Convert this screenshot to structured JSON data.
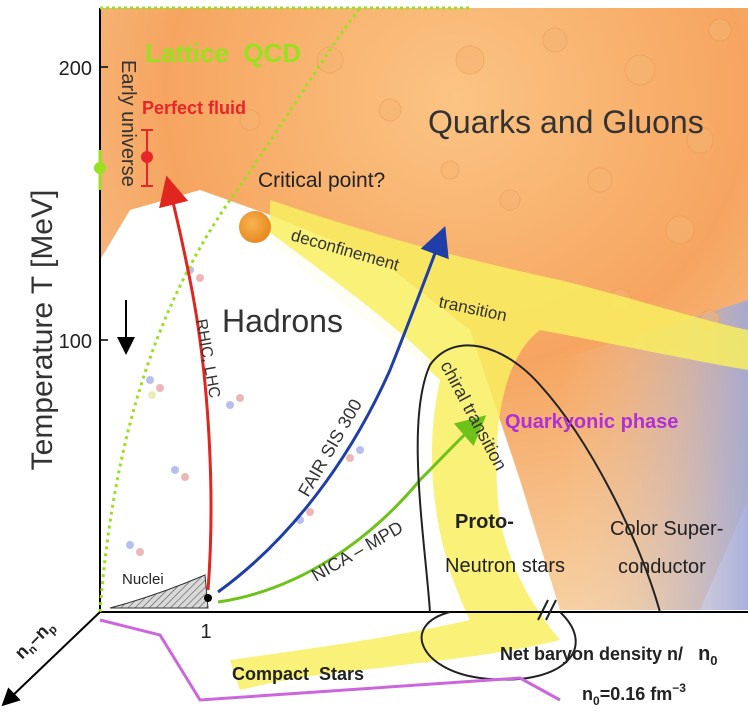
{
  "axes": {
    "y_label": "Temperature T [MeV]",
    "y_ticks": [
      "200",
      "100"
    ],
    "x_tick": "1",
    "x_label": "Net baryon density n/",
    "x_label_sub": "n",
    "x_label_sub2": "0",
    "norm_def_a": "n",
    "norm_def_b": "0",
    "norm_def_c": "=0.16 fm",
    "norm_def_d": "−3",
    "diag_axis_a": "n",
    "diag_axis_b": "n",
    "diag_axis_c": "–n",
    "diag_axis_d": "p"
  },
  "labels": {
    "lattice": "Lattice  QCD",
    "early_universe": "Early universe",
    "perfect_fluid": "Perfect fluid",
    "quarks_gluons": "Quarks and Gluons",
    "critical_point": "Critical point?",
    "deconfinement": "deconfinement",
    "transition": "transition",
    "hadrons": "Hadrons",
    "rhic": "RHIC, LHC",
    "fair": "FAIR SIS 300",
    "chiral": "chiral transition",
    "quarkyonic": "Quarkyonic phase",
    "nica": "NICA – MPD",
    "proto": "Proto-",
    "neutron_stars": "Neutron stars",
    "color_super_1": "Color Super-",
    "color_super_2": "conductor",
    "nuclei": "Nuclei",
    "compact_stars": "Compact  Stars"
  },
  "colors": {
    "lattice": "#99e01e",
    "perfect_fluid": "#e8252a",
    "rhic_arrow": "#e0261f",
    "fair_arrow": "#1f3ea8",
    "nica_arrow": "#6fc21a",
    "quarkyonic": "#b030d8",
    "compact_line": "#cc66dd",
    "critical_point": "#f0a030",
    "band": "#f8ee60",
    "qgp": "#f7b070"
  }
}
